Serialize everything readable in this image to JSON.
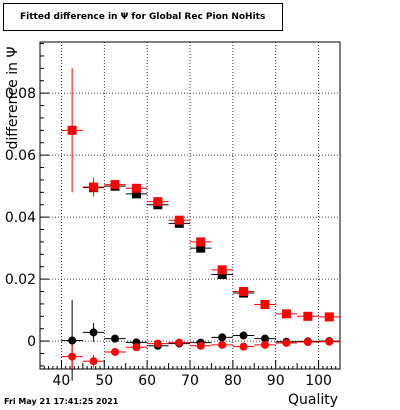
{
  "chart_data": {
    "type": "scatter",
    "title": "Fitted difference in  Ψ  for Global Rec Pion NoHits",
    "xlabel": "Quality",
    "ylabel": "difference in  Ψ",
    "xlim": [
      35,
      105
    ],
    "ylim": [
      -0.009,
      0.0965
    ],
    "grid": true,
    "x_ticks": [
      "40",
      "50",
      "60",
      "70",
      "80",
      "90",
      "100"
    ],
    "y_ticks": [
      "0",
      "0.02",
      "0.04",
      "0.06",
      "0.08"
    ],
    "series": [
      {
        "color": "#000000",
        "marker": "square",
        "points": [
          {
            "x": 47.5,
            "y": 0.0495,
            "ex": 2.5,
            "ey": 0.0015
          },
          {
            "x": 52.5,
            "y": 0.05,
            "ex": 2.5,
            "ey": 0.001
          },
          {
            "x": 57.5,
            "y": 0.0475,
            "ex": 2.5,
            "ey": 0.0008
          },
          {
            "x": 62.5,
            "y": 0.044,
            "ex": 2.5,
            "ey": 0.0006
          },
          {
            "x": 67.5,
            "y": 0.038,
            "ex": 2.5,
            "ey": 0.0005
          },
          {
            "x": 72.5,
            "y": 0.03,
            "ex": 2.5,
            "ey": 0.0005
          },
          {
            "x": 77.5,
            "y": 0.0215,
            "ex": 2.5,
            "ey": 0.0004
          },
          {
            "x": 82.5,
            "y": 0.0155,
            "ex": 2.5,
            "ey": 0.0004
          }
        ]
      },
      {
        "color": "#ff0000",
        "marker": "square",
        "points": [
          {
            "x": 42.5,
            "y": 0.068,
            "ex": 2.5,
            "ey": 0.02
          },
          {
            "x": 47.5,
            "y": 0.0497,
            "ex": 2.5,
            "ey": 0.003
          },
          {
            "x": 52.5,
            "y": 0.0505,
            "ex": 2.5,
            "ey": 0.0015
          },
          {
            "x": 57.5,
            "y": 0.0493,
            "ex": 2.5,
            "ey": 0.001
          },
          {
            "x": 62.5,
            "y": 0.045,
            "ex": 2.5,
            "ey": 0.0008
          },
          {
            "x": 67.5,
            "y": 0.039,
            "ex": 2.5,
            "ey": 0.0006
          },
          {
            "x": 72.5,
            "y": 0.032,
            "ex": 2.5,
            "ey": 0.0005
          },
          {
            "x": 77.5,
            "y": 0.023,
            "ex": 2.5,
            "ey": 0.0004
          },
          {
            "x": 82.5,
            "y": 0.016,
            "ex": 2.5,
            "ey": 0.0004
          },
          {
            "x": 87.5,
            "y": 0.0118,
            "ex": 2.5,
            "ey": 0.0003
          },
          {
            "x": 92.5,
            "y": 0.0088,
            "ex": 2.5,
            "ey": 0.0003
          },
          {
            "x": 97.5,
            "y": 0.008,
            "ex": 2.5,
            "ey": 0.0003
          },
          {
            "x": 102.5,
            "y": 0.0078,
            "ex": 2.5,
            "ey": 0.0003
          }
        ]
      },
      {
        "color": "#000000",
        "marker": "circle",
        "points": [
          {
            "x": 42.5,
            "y": 0.0002,
            "ex": 2.5,
            "ey": 0.013
          },
          {
            "x": 47.5,
            "y": 0.0028,
            "ex": 2.5,
            "ey": 0.003
          },
          {
            "x": 52.5,
            "y": 0.0008,
            "ex": 2.5,
            "ey": 0.0012
          },
          {
            "x": 57.5,
            "y": -0.0004,
            "ex": 2.5,
            "ey": 0.0008
          },
          {
            "x": 62.5,
            "y": -0.0015,
            "ex": 2.5,
            "ey": 0.0006
          },
          {
            "x": 67.5,
            "y": -0.0008,
            "ex": 2.5,
            "ey": 0.0005
          },
          {
            "x": 72.5,
            "y": -0.0005,
            "ex": 2.5,
            "ey": 0.0005
          },
          {
            "x": 77.5,
            "y": 0.0012,
            "ex": 2.5,
            "ey": 0.0004
          },
          {
            "x": 82.5,
            "y": 0.0018,
            "ex": 2.5,
            "ey": 0.0004
          },
          {
            "x": 87.5,
            "y": 0.0008,
            "ex": 2.5,
            "ey": 0.0003
          },
          {
            "x": 92.5,
            "y": -0.0002,
            "ex": 2.5,
            "ey": 0.0003
          },
          {
            "x": 97.5,
            "y": -0.0001,
            "ex": 2.5,
            "ey": 0.0003
          },
          {
            "x": 102.5,
            "y": 0.0,
            "ex": 2.5,
            "ey": 0.0003
          }
        ]
      },
      {
        "color": "#ff0000",
        "marker": "circle",
        "points": [
          {
            "x": 42.5,
            "y": -0.005,
            "ex": 2.5,
            "ey": 0.004
          },
          {
            "x": 47.5,
            "y": -0.0065,
            "ex": 2.5,
            "ey": 0.002
          },
          {
            "x": 52.5,
            "y": -0.0035,
            "ex": 2.5,
            "ey": 0.0012
          },
          {
            "x": 57.5,
            "y": -0.002,
            "ex": 2.5,
            "ey": 0.0008
          },
          {
            "x": 62.5,
            "y": -0.0008,
            "ex": 2.5,
            "ey": 0.0006
          },
          {
            "x": 67.5,
            "y": -0.0005,
            "ex": 2.5,
            "ey": 0.0005
          },
          {
            "x": 72.5,
            "y": -0.0015,
            "ex": 2.5,
            "ey": 0.0005
          },
          {
            "x": 77.5,
            "y": -0.0012,
            "ex": 2.5,
            "ey": 0.0004
          },
          {
            "x": 82.5,
            "y": -0.0018,
            "ex": 2.5,
            "ey": 0.0004
          },
          {
            "x": 87.5,
            "y": -0.0012,
            "ex": 2.5,
            "ey": 0.0003
          },
          {
            "x": 92.5,
            "y": -0.0006,
            "ex": 2.5,
            "ey": 0.0003
          },
          {
            "x": 97.5,
            "y": -0.0003,
            "ex": 2.5,
            "ey": 0.0003
          },
          {
            "x": 102.5,
            "y": -0.0002,
            "ex": 2.5,
            "ey": 0.0003
          }
        ]
      }
    ]
  },
  "timestamp": "Fri May 21 17:41:25 2021"
}
